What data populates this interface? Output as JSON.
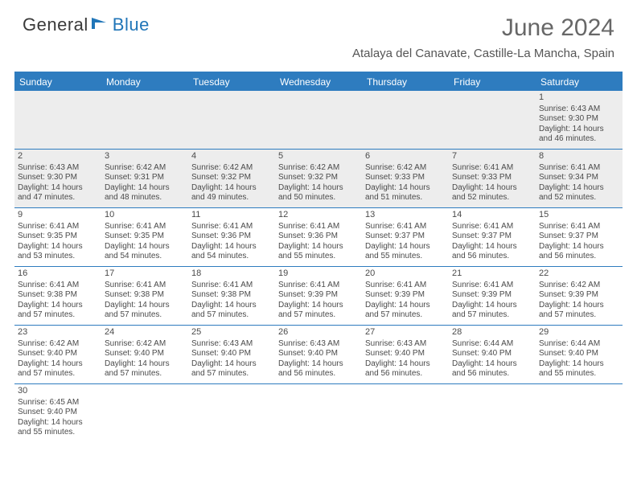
{
  "logo": {
    "part1": "General",
    "part2": "Blue"
  },
  "title": "June 2024",
  "location": "Atalaya del Canavate, Castille-La Mancha, Spain",
  "day_headers": [
    "Sunday",
    "Monday",
    "Tuesday",
    "Wednesday",
    "Thursday",
    "Friday",
    "Saturday"
  ],
  "header_bg": "#2e7cbf",
  "header_fg": "#ffffff",
  "alt_bg": "#ededed",
  "border_color": "#2e7cbf",
  "weeks": [
    [
      {
        "empty": true
      },
      {
        "empty": true
      },
      {
        "empty": true
      },
      {
        "empty": true
      },
      {
        "empty": true
      },
      {
        "empty": true
      },
      {
        "day": "1",
        "sunrise": "Sunrise: 6:43 AM",
        "sunset": "Sunset: 9:30 PM",
        "daylight1": "Daylight: 14 hours",
        "daylight2": "and 46 minutes.",
        "alt": true
      }
    ],
    [
      {
        "day": "2",
        "sunrise": "Sunrise: 6:43 AM",
        "sunset": "Sunset: 9:30 PM",
        "daylight1": "Daylight: 14 hours",
        "daylight2": "and 47 minutes.",
        "alt": true
      },
      {
        "day": "3",
        "sunrise": "Sunrise: 6:42 AM",
        "sunset": "Sunset: 9:31 PM",
        "daylight1": "Daylight: 14 hours",
        "daylight2": "and 48 minutes.",
        "alt": true
      },
      {
        "day": "4",
        "sunrise": "Sunrise: 6:42 AM",
        "sunset": "Sunset: 9:32 PM",
        "daylight1": "Daylight: 14 hours",
        "daylight2": "and 49 minutes.",
        "alt": true
      },
      {
        "day": "5",
        "sunrise": "Sunrise: 6:42 AM",
        "sunset": "Sunset: 9:32 PM",
        "daylight1": "Daylight: 14 hours",
        "daylight2": "and 50 minutes.",
        "alt": true
      },
      {
        "day": "6",
        "sunrise": "Sunrise: 6:42 AM",
        "sunset": "Sunset: 9:33 PM",
        "daylight1": "Daylight: 14 hours",
        "daylight2": "and 51 minutes.",
        "alt": true
      },
      {
        "day": "7",
        "sunrise": "Sunrise: 6:41 AM",
        "sunset": "Sunset: 9:33 PM",
        "daylight1": "Daylight: 14 hours",
        "daylight2": "and 52 minutes.",
        "alt": true
      },
      {
        "day": "8",
        "sunrise": "Sunrise: 6:41 AM",
        "sunset": "Sunset: 9:34 PM",
        "daylight1": "Daylight: 14 hours",
        "daylight2": "and 52 minutes.",
        "alt": true
      }
    ],
    [
      {
        "day": "9",
        "sunrise": "Sunrise: 6:41 AM",
        "sunset": "Sunset: 9:35 PM",
        "daylight1": "Daylight: 14 hours",
        "daylight2": "and 53 minutes."
      },
      {
        "day": "10",
        "sunrise": "Sunrise: 6:41 AM",
        "sunset": "Sunset: 9:35 PM",
        "daylight1": "Daylight: 14 hours",
        "daylight2": "and 54 minutes."
      },
      {
        "day": "11",
        "sunrise": "Sunrise: 6:41 AM",
        "sunset": "Sunset: 9:36 PM",
        "daylight1": "Daylight: 14 hours",
        "daylight2": "and 54 minutes."
      },
      {
        "day": "12",
        "sunrise": "Sunrise: 6:41 AM",
        "sunset": "Sunset: 9:36 PM",
        "daylight1": "Daylight: 14 hours",
        "daylight2": "and 55 minutes."
      },
      {
        "day": "13",
        "sunrise": "Sunrise: 6:41 AM",
        "sunset": "Sunset: 9:37 PM",
        "daylight1": "Daylight: 14 hours",
        "daylight2": "and 55 minutes."
      },
      {
        "day": "14",
        "sunrise": "Sunrise: 6:41 AM",
        "sunset": "Sunset: 9:37 PM",
        "daylight1": "Daylight: 14 hours",
        "daylight2": "and 56 minutes."
      },
      {
        "day": "15",
        "sunrise": "Sunrise: 6:41 AM",
        "sunset": "Sunset: 9:37 PM",
        "daylight1": "Daylight: 14 hours",
        "daylight2": "and 56 minutes."
      }
    ],
    [
      {
        "day": "16",
        "sunrise": "Sunrise: 6:41 AM",
        "sunset": "Sunset: 9:38 PM",
        "daylight1": "Daylight: 14 hours",
        "daylight2": "and 57 minutes."
      },
      {
        "day": "17",
        "sunrise": "Sunrise: 6:41 AM",
        "sunset": "Sunset: 9:38 PM",
        "daylight1": "Daylight: 14 hours",
        "daylight2": "and 57 minutes."
      },
      {
        "day": "18",
        "sunrise": "Sunrise: 6:41 AM",
        "sunset": "Sunset: 9:38 PM",
        "daylight1": "Daylight: 14 hours",
        "daylight2": "and 57 minutes."
      },
      {
        "day": "19",
        "sunrise": "Sunrise: 6:41 AM",
        "sunset": "Sunset: 9:39 PM",
        "daylight1": "Daylight: 14 hours",
        "daylight2": "and 57 minutes."
      },
      {
        "day": "20",
        "sunrise": "Sunrise: 6:41 AM",
        "sunset": "Sunset: 9:39 PM",
        "daylight1": "Daylight: 14 hours",
        "daylight2": "and 57 minutes."
      },
      {
        "day": "21",
        "sunrise": "Sunrise: 6:41 AM",
        "sunset": "Sunset: 9:39 PM",
        "daylight1": "Daylight: 14 hours",
        "daylight2": "and 57 minutes."
      },
      {
        "day": "22",
        "sunrise": "Sunrise: 6:42 AM",
        "sunset": "Sunset: 9:39 PM",
        "daylight1": "Daylight: 14 hours",
        "daylight2": "and 57 minutes."
      }
    ],
    [
      {
        "day": "23",
        "sunrise": "Sunrise: 6:42 AM",
        "sunset": "Sunset: 9:40 PM",
        "daylight1": "Daylight: 14 hours",
        "daylight2": "and 57 minutes."
      },
      {
        "day": "24",
        "sunrise": "Sunrise: 6:42 AM",
        "sunset": "Sunset: 9:40 PM",
        "daylight1": "Daylight: 14 hours",
        "daylight2": "and 57 minutes."
      },
      {
        "day": "25",
        "sunrise": "Sunrise: 6:43 AM",
        "sunset": "Sunset: 9:40 PM",
        "daylight1": "Daylight: 14 hours",
        "daylight2": "and 57 minutes."
      },
      {
        "day": "26",
        "sunrise": "Sunrise: 6:43 AM",
        "sunset": "Sunset: 9:40 PM",
        "daylight1": "Daylight: 14 hours",
        "daylight2": "and 56 minutes."
      },
      {
        "day": "27",
        "sunrise": "Sunrise: 6:43 AM",
        "sunset": "Sunset: 9:40 PM",
        "daylight1": "Daylight: 14 hours",
        "daylight2": "and 56 minutes."
      },
      {
        "day": "28",
        "sunrise": "Sunrise: 6:44 AM",
        "sunset": "Sunset: 9:40 PM",
        "daylight1": "Daylight: 14 hours",
        "daylight2": "and 56 minutes."
      },
      {
        "day": "29",
        "sunrise": "Sunrise: 6:44 AM",
        "sunset": "Sunset: 9:40 PM",
        "daylight1": "Daylight: 14 hours",
        "daylight2": "and 55 minutes."
      }
    ],
    [
      {
        "day": "30",
        "sunrise": "Sunrise: 6:45 AM",
        "sunset": "Sunset: 9:40 PM",
        "daylight1": "Daylight: 14 hours",
        "daylight2": "and 55 minutes."
      },
      {
        "empty": true,
        "plain": true
      },
      {
        "empty": true,
        "plain": true
      },
      {
        "empty": true,
        "plain": true
      },
      {
        "empty": true,
        "plain": true
      },
      {
        "empty": true,
        "plain": true
      },
      {
        "empty": true,
        "plain": true
      }
    ]
  ]
}
